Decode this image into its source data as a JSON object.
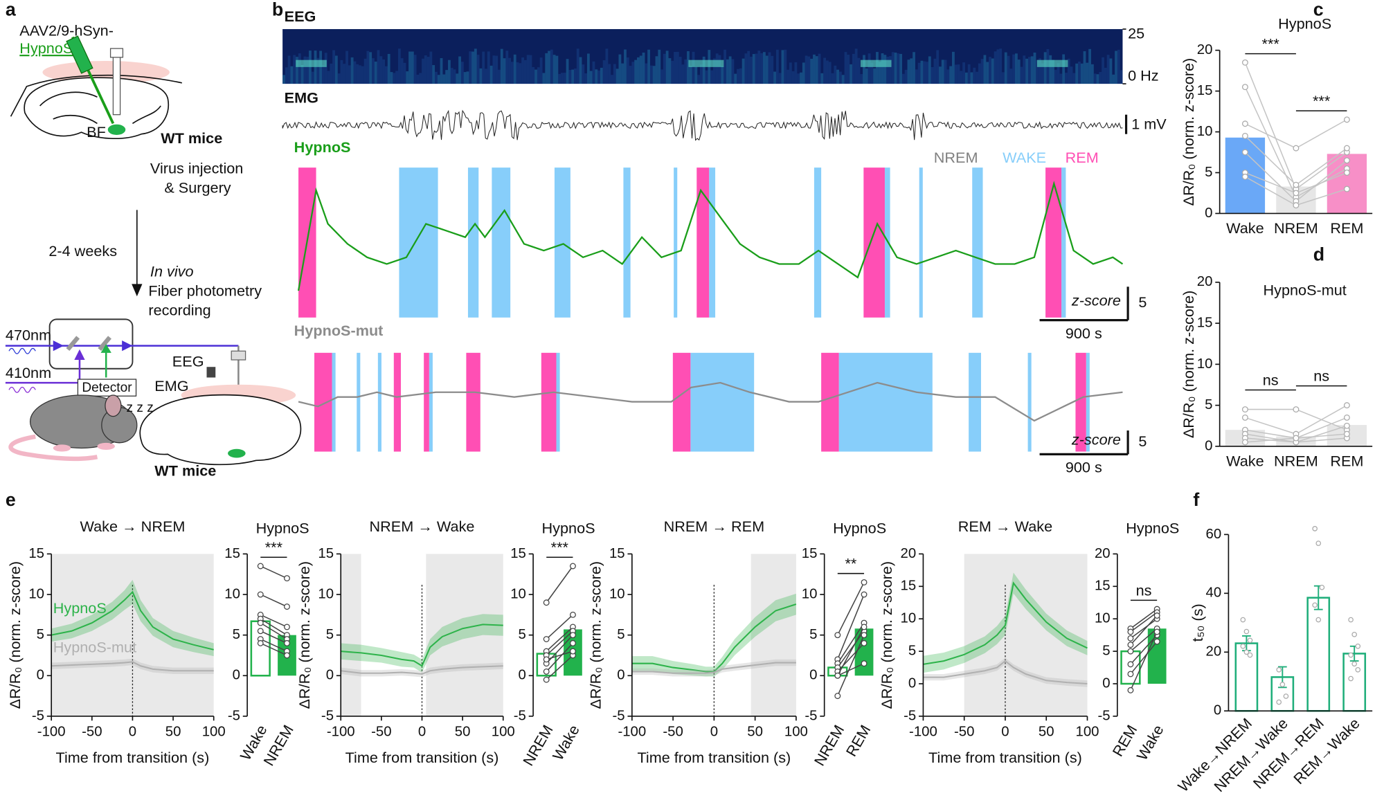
{
  "panel_labels": [
    "a",
    "b",
    "c",
    "d",
    "e",
    "f"
  ],
  "panel_a": {
    "virus_line1": "AAV2/9-hSyn-",
    "virus_line2": "HypnoS",
    "region": "BF",
    "mice_top": "WT mice",
    "step1_line1": "Virus injection",
    "step1_line2": "& Surgery",
    "interval": "2-4 weeks",
    "step2_line1": "In vivo",
    "step2_line2": "Fiber photometry",
    "step2_line3": "recording",
    "laser1": "470nm",
    "laser2": "410nm",
    "detector": "Detector",
    "eeg": "EEG",
    "emg": "EMG",
    "sleep": "z z z",
    "mice_bottom": "WT mice"
  },
  "panel_b": {
    "eeg": {
      "title": "EEG",
      "ylim": [
        0,
        25
      ],
      "yticks": [
        {
          "value": 0,
          "label": "0 Hz"
        },
        25
      ]
    },
    "emg": {
      "title": "EMG",
      "scalebar": {
        "value": 1,
        "label": "1 mV"
      }
    }
  },
  "chart_data": [
    {
      "type": "trace",
      "title": "HypnoS",
      "color": "#1a9e1a",
      "xlim": [
        0,
        8400
      ],
      "ylim": [
        -8,
        14.4
      ],
      "x": [
        0,
        180,
        300,
        500,
        700,
        900,
        1100,
        1300,
        1500,
        1700,
        1800,
        1900,
        2100,
        2300,
        2500,
        2700,
        2900,
        3100,
        3300,
        3500,
        3700,
        3900,
        4100,
        4300,
        4500,
        4700,
        4900,
        5100,
        5300,
        5500,
        5700,
        5900,
        6100,
        6300,
        6500,
        6700,
        6900,
        7100,
        7300,
        7500,
        7700,
        7900,
        8100,
        8300,
        8400
      ],
      "values": [
        -4,
        11,
        6,
        3,
        1,
        0,
        1,
        6,
        5,
        4,
        6,
        4,
        8,
        3,
        2,
        3,
        1,
        2,
        0,
        4,
        1,
        2,
        11,
        7,
        3,
        1,
        0,
        0,
        2,
        0,
        -2,
        6,
        1,
        0,
        1,
        2,
        1,
        0,
        0,
        1,
        12,
        2,
        0,
        1,
        0
      ],
      "states": [
        {
          "name": "NREM",
          "color": "#808080"
        },
        {
          "name": "WAKE",
          "color": "#87cefa",
          "intervals": [
            [
              1026,
              1422
            ],
            [
              1728,
              1836
            ],
            [
              1971,
              2160
            ],
            [
              2610,
              2772
            ],
            [
              3312,
              3384
            ],
            [
              3825,
              3861
            ],
            [
              4185,
              4248
            ],
            [
              5256,
              5328
            ],
            [
              5976,
              6030
            ],
            [
              6327,
              6363
            ],
            [
              6867,
              6975
            ],
            [
              7776,
              7821
            ]
          ]
        },
        {
          "name": "REM",
          "color": "#ff4fb4",
          "intervals": [
            [
              0,
              180
            ],
            [
              4059,
              4185
            ],
            [
              5760,
              5976
            ],
            [
              7614,
              7776
            ]
          ]
        }
      ],
      "scalebar": {
        "x": {
          "value": 900,
          "label": "900 s"
        },
        "y": 5,
        "unit": "z-score"
      }
    },
    {
      "type": "trace",
      "title": "HypnoS-mut",
      "color": "#8c8c8c",
      "xlim": [
        0,
        8400
      ],
      "ylim": [
        -11.5,
        9.3
      ],
      "x": [
        0,
        200,
        400,
        600,
        800,
        1000,
        1400,
        1800,
        2200,
        2600,
        3000,
        3400,
        3800,
        4000,
        4300,
        4600,
        5000,
        5300,
        5600,
        5900,
        6300,
        6700,
        7100,
        7500,
        7800,
        8000,
        8400
      ],
      "values": [
        -1,
        -2,
        0,
        0,
        1,
        0,
        1,
        1,
        0,
        1,
        0,
        -1,
        -1,
        2,
        3,
        1,
        -1,
        -1,
        1,
        3,
        1,
        0,
        0,
        -5,
        -2,
        0,
        1
      ],
      "states": [
        {
          "color": "#87cefa",
          "intervals": [
            [
              342,
              378
            ],
            [
              594,
              630
            ],
            [
              810,
              846
            ],
            [
              1332,
              1368
            ],
            [
              2628,
              2664
            ],
            [
              3996,
              4644
            ],
            [
              5508,
              6462
            ],
            [
              6831,
              6957
            ],
            [
              7434,
              7470
            ],
            [
              8028,
              8064
            ]
          ]
        },
        {
          "color": "#ff4fb4",
          "intervals": [
            [
              162,
              342
            ],
            [
              972,
              1044
            ],
            [
              1278,
              1332
            ],
            [
              1710,
              1854
            ],
            [
              2475,
              2628
            ],
            [
              3816,
              3996
            ],
            [
              5328,
              5508
            ],
            [
              7920,
              8028
            ]
          ]
        }
      ],
      "scalebar": {
        "x": {
          "value": 900,
          "label": "900 s"
        },
        "y": 5,
        "unit": "z-score"
      }
    },
    {
      "type": "bar",
      "title": "HypnoS",
      "ylabel": "ΔR/R₀ (norm. z-score)",
      "categories": [
        "Wake",
        "NREM",
        "REM"
      ],
      "values": [
        9.3,
        3.3,
        7.3
      ],
      "colors": [
        "#6aa8f7",
        "#e6e6e6",
        "#f78fc7"
      ],
      "ylim": [
        0,
        20
      ],
      "yticks": [
        0,
        5,
        10,
        15,
        20
      ],
      "subjects": [
        [
          18.5,
          3,
          7.5
        ],
        [
          15.5,
          2,
          5.5
        ],
        [
          11,
          8,
          11.5
        ],
        [
          9.5,
          3.5,
          8
        ],
        [
          7.5,
          1.5,
          6.5
        ],
        [
          5,
          2.5,
          5
        ],
        [
          4.5,
          1,
          3
        ]
      ],
      "significance": [
        "***",
        "***"
      ]
    },
    {
      "type": "bar",
      "title": "HypnoS-mut",
      "ylabel": "ΔR/R₀ (norm. z-score)",
      "categories": [
        "Wake",
        "NREM",
        "REM"
      ],
      "values": [
        2,
        1.2,
        2.6
      ],
      "colors": [
        "#e6e6e6",
        "#e6e6e6",
        "#e6e6e6"
      ],
      "ylim": [
        0,
        20
      ],
      "yticks": [
        0,
        5,
        10,
        15,
        20
      ],
      "subjects": [
        [
          4.5,
          4.5,
          2
        ],
        [
          3.5,
          1.5,
          5
        ],
        [
          2,
          1,
          3.5
        ],
        [
          1.5,
          0.5,
          2.5
        ],
        [
          1,
          0.5,
          1
        ],
        [
          0.5,
          1,
          1.5
        ]
      ],
      "significance": [
        "ns",
        "ns"
      ]
    },
    {
      "type": "line",
      "title": "Wake → NREM",
      "xlabel": "Time from transition (s)",
      "ylabel": "ΔR/R₀ (norm. z-score)",
      "xlim": [
        -100,
        100
      ],
      "ylim": [
        -5,
        15
      ],
      "xticks": [
        -100,
        -50,
        0,
        50,
        100
      ],
      "yticks": [
        -5,
        0,
        5,
        10,
        15
      ],
      "shaded": [
        [
          -100,
          100
        ]
      ],
      "x": [
        -100,
        -75,
        -50,
        -25,
        -10,
        0,
        10,
        25,
        50,
        75,
        100
      ],
      "series": [
        {
          "name": "HypnoS",
          "color": "#2db34a",
          "values": [
            5,
            5.5,
            6.5,
            8,
            9.3,
            10.3,
            8,
            6,
            4.5,
            3.8,
            3.2
          ],
          "errors": [
            0.8,
            0.9,
            1,
            1.1,
            1.2,
            1.5,
            1.3,
            1.1,
            1,
            0.9,
            0.8
          ]
        },
        {
          "name": "HypnoS-mut",
          "color": "#b0b0b0",
          "values": [
            1.2,
            1.3,
            1.4,
            1.5,
            1.6,
            1.7,
            1.2,
            0.8,
            0.6,
            0.6,
            0.6
          ],
          "errors": [
            0.4,
            0.4,
            0.4,
            0.4,
            0.4,
            0.4,
            0.4,
            0.4,
            0.4,
            0.4,
            0.4
          ]
        }
      ]
    },
    {
      "type": "line",
      "title": "NREM → Wake",
      "xlabel": "Time from transition (s)",
      "ylabel": "ΔR/R₀ (norm. z-score)",
      "xlim": [
        -100,
        100
      ],
      "ylim": [
        -5,
        15
      ],
      "xticks": [
        -100,
        -50,
        0,
        50,
        100
      ],
      "yticks": [
        -5,
        0,
        5,
        10,
        15
      ],
      "shaded": [
        [
          -100,
          -75
        ],
        [
          5,
          100
        ]
      ],
      "x": [
        -100,
        -75,
        -50,
        -25,
        -10,
        0,
        10,
        25,
        50,
        75,
        100
      ],
      "series": [
        {
          "color": "#2db34a",
          "values": [
            3,
            2.8,
            2.5,
            2,
            1.8,
            1.2,
            3.5,
            4.8,
            5.8,
            6.3,
            6.2
          ],
          "errors": [
            1,
            1,
            0.9,
            0.9,
            0.8,
            0.8,
            1,
            1.2,
            1.3,
            1.3,
            1.3
          ]
        },
        {
          "color": "#b0b0b0",
          "values": [
            0.6,
            0.3,
            0.3,
            0.4,
            0.3,
            0.2,
            0.6,
            0.8,
            1,
            1.1,
            1.2
          ],
          "errors": [
            0.4,
            0.4,
            0.4,
            0.4,
            0.4,
            0.4,
            0.4,
            0.4,
            0.4,
            0.4,
            0.4
          ]
        }
      ]
    },
    {
      "type": "line",
      "title": "NREM → REM",
      "xlabel": "Time from transition (s)",
      "ylabel": "ΔR/R₀ (norm. z-score)",
      "xlim": [
        -100,
        100
      ],
      "ylim": [
        -5,
        15
      ],
      "xticks": [
        -100,
        -50,
        0,
        50,
        100
      ],
      "yticks": [
        -5,
        0,
        5,
        10,
        15
      ],
      "shaded": [
        [
          45,
          100
        ]
      ],
      "x": [
        -100,
        -75,
        -50,
        -25,
        -10,
        0,
        10,
        25,
        50,
        75,
        100
      ],
      "series": [
        {
          "color": "#2db34a",
          "values": [
            1.5,
            1.5,
            1,
            0.7,
            0.5,
            0.5,
            1.5,
            3.5,
            6,
            8,
            8.8
          ],
          "errors": [
            0.9,
            0.9,
            0.8,
            0.7,
            0.6,
            0.6,
            0.8,
            1,
            1.2,
            1.3,
            1.3
          ]
        },
        {
          "color": "#b0b0b0",
          "values": [
            0.5,
            0.5,
            0.3,
            0.3,
            0.3,
            0.4,
            0.8,
            1,
            1.3,
            1.6,
            1.6
          ],
          "errors": [
            0.4,
            0.4,
            0.4,
            0.4,
            0.4,
            0.4,
            0.4,
            0.4,
            0.4,
            0.4,
            0.4
          ]
        }
      ]
    },
    {
      "type": "line",
      "title": "REM → Wake",
      "xlabel": "Time from transition (s)",
      "ylabel": "ΔR/R₀ (norm. z-score)",
      "xlim": [
        -100,
        100
      ],
      "ylim": [
        -5,
        20
      ],
      "xticks": [
        -100,
        -50,
        0,
        50,
        100
      ],
      "yticks": [
        -5,
        0,
        5,
        10,
        15,
        20
      ],
      "shaded": [
        [
          -50,
          100
        ]
      ],
      "x": [
        -100,
        -75,
        -50,
        -25,
        -10,
        0,
        10,
        25,
        50,
        75,
        100
      ],
      "series": [
        {
          "color": "#2db34a",
          "values": [
            3,
            3.5,
            4.5,
            6,
            7.5,
            9,
            15.5,
            13,
            9.5,
            7,
            5.5
          ],
          "errors": [
            1.3,
            1.3,
            1.3,
            1.3,
            1.4,
            1.5,
            1.6,
            1.5,
            1.3,
            1.2,
            1.1
          ]
        },
        {
          "color": "#b0b0b0",
          "values": [
            1,
            1,
            1.5,
            2,
            2.5,
            3.5,
            2.5,
            1.5,
            0.5,
            0.2,
            0
          ],
          "errors": [
            0.5,
            0.5,
            0.5,
            0.5,
            0.5,
            0.5,
            0.5,
            0.5,
            0.5,
            0.5,
            0.5
          ]
        }
      ]
    },
    {
      "type": "bar",
      "title": "HypnoS",
      "categories": [
        "Wake",
        "NREM"
      ],
      "values": [
        6.7,
        5
      ],
      "colors": [
        "#22b24c",
        "#22b24c"
      ],
      "filled": [
        false,
        true
      ],
      "ylim": [
        -5,
        15
      ],
      "yticks": [
        -5,
        0,
        5,
        10,
        15
      ],
      "subjects": [
        [
          13.5,
          12
        ],
        [
          10,
          8.5
        ],
        [
          7.5,
          6
        ],
        [
          7,
          5
        ],
        [
          6.5,
          4.5
        ],
        [
          5.5,
          4
        ],
        [
          4.5,
          3
        ],
        [
          4,
          2.5
        ]
      ],
      "significance": [
        "***"
      ]
    },
    {
      "type": "bar",
      "title": "HypnoS",
      "categories": [
        "NREM",
        "Wake"
      ],
      "values": [
        2.7,
        5.7
      ],
      "colors": [
        "#22b24c",
        "#22b24c"
      ],
      "filled": [
        false,
        true
      ],
      "ylim": [
        -5,
        15
      ],
      "yticks": [
        -5,
        0,
        5,
        10,
        15
      ],
      "subjects": [
        [
          9,
          13.5
        ],
        [
          4.5,
          7.5
        ],
        [
          3,
          6
        ],
        [
          2.5,
          5.5
        ],
        [
          1.5,
          5
        ],
        [
          0.5,
          4
        ],
        [
          -0.5,
          2.5
        ],
        [
          2,
          3
        ]
      ],
      "significance": [
        "***"
      ]
    },
    {
      "type": "bar",
      "title": "HypnoS",
      "categories": [
        "NREM",
        "REM"
      ],
      "values": [
        1,
        5.8
      ],
      "colors": [
        "#22b24c",
        "#22b24c"
      ],
      "filled": [
        false,
        true
      ],
      "ylim": [
        -5,
        15
      ],
      "yticks": [
        -5,
        0,
        5,
        10,
        15
      ],
      "subjects": [
        [
          5,
          11.5
        ],
        [
          2,
          10
        ],
        [
          1.5,
          6.5
        ],
        [
          1,
          5.5
        ],
        [
          0.5,
          4
        ],
        [
          0,
          6
        ],
        [
          -2.5,
          5
        ],
        [
          0,
          1.5
        ]
      ],
      "significance": [
        "**"
      ]
    },
    {
      "type": "bar",
      "title": "HypnoS",
      "categories": [
        "REM",
        "Wake"
      ],
      "values": [
        5,
        8.5
      ],
      "colors": [
        "#22b24c",
        "#22b24c"
      ],
      "filled": [
        false,
        true
      ],
      "ylim": [
        -5,
        20
      ],
      "yticks": [
        -5,
        0,
        5,
        10,
        15,
        20
      ],
      "subjects": [
        [
          8.5,
          11.5
        ],
        [
          8,
          11
        ],
        [
          7,
          10
        ],
        [
          6,
          10.5
        ],
        [
          5,
          8.5
        ],
        [
          3,
          7.5
        ],
        [
          1.5,
          6.5
        ],
        [
          -1,
          8
        ]
      ],
      "significance": [
        "ns"
      ]
    },
    {
      "type": "bar",
      "ylabel": "t₅₀ (s)",
      "categories": [
        "Wake→NREM",
        "NREM→Wake",
        "NREM→REM",
        "REM→Wake"
      ],
      "values": [
        23,
        11.5,
        38.5,
        19.5
      ],
      "errors": [
        2.5,
        3.5,
        4,
        2.5
      ],
      "colors": [
        "#1fae7a",
        "#1fae7a",
        "#1fae7a",
        "#1fae7a"
      ],
      "filled": [
        false,
        false,
        false,
        false
      ],
      "ylim": [
        0,
        60
      ],
      "yticks": [
        0,
        20,
        40,
        60
      ],
      "points": [
        [
          31,
          27,
          24,
          22,
          20,
          19
        ],
        [
          14,
          9,
          5,
          3
        ],
        [
          62,
          57,
          42,
          36,
          31
        ],
        [
          31,
          26,
          22,
          19,
          16,
          14,
          11
        ]
      ]
    }
  ]
}
